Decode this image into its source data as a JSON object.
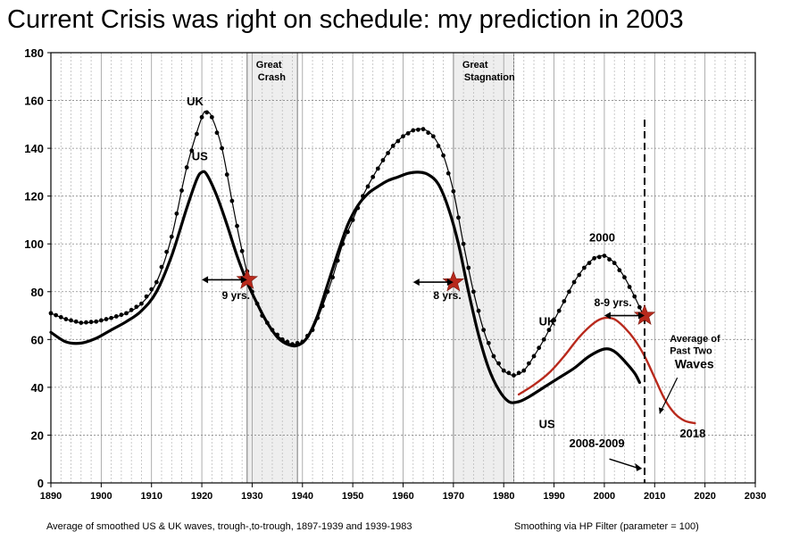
{
  "title": "Current Crisis was right on schedule: my prediction in 2003",
  "footer_left": "Average of smoothed US & UK waves, trough-,to-trough, 1897-1939 and 1939-1983",
  "footer_right": "Smoothing via HP Filter (parameter = 100)",
  "chart_data": {
    "type": "line",
    "title": "Current Crisis was right on schedule: my prediction in 2003",
    "xlabel": "",
    "ylabel": "",
    "xlim": [
      1890,
      2030
    ],
    "ylim": [
      0,
      180
    ],
    "x_ticks": [
      1890,
      1900,
      1910,
      1920,
      1930,
      1940,
      1950,
      1960,
      1970,
      1980,
      1990,
      2000,
      2010,
      2020,
      2030
    ],
    "y_ticks": [
      0,
      20,
      40,
      60,
      80,
      100,
      120,
      140,
      160,
      180
    ],
    "grid": true,
    "series": [
      {
        "name": "UK",
        "color": "#000000",
        "style": "dotted-markers",
        "points": [
          [
            1890,
            71
          ],
          [
            1893,
            68.5
          ],
          [
            1896,
            67
          ],
          [
            1899,
            67.5
          ],
          [
            1902,
            69
          ],
          [
            1905,
            71
          ],
          [
            1908,
            75
          ],
          [
            1911,
            84
          ],
          [
            1914,
            103
          ],
          [
            1917,
            132
          ],
          [
            1920,
            153
          ],
          [
            1921,
            155
          ],
          [
            1922,
            153
          ],
          [
            1924,
            140
          ],
          [
            1926,
            118
          ],
          [
            1928,
            97
          ],
          [
            1930,
            80
          ],
          [
            1932,
            70
          ],
          [
            1934,
            64
          ],
          [
            1936,
            60
          ],
          [
            1938,
            58
          ],
          [
            1940,
            59
          ],
          [
            1942,
            64
          ],
          [
            1944,
            74
          ],
          [
            1946,
            86
          ],
          [
            1948,
            100
          ],
          [
            1950,
            110
          ],
          [
            1952,
            120
          ],
          [
            1954,
            128
          ],
          [
            1956,
            135
          ],
          [
            1958,
            141
          ],
          [
            1960,
            145
          ],
          [
            1962,
            147.5
          ],
          [
            1964,
            148
          ],
          [
            1966,
            145
          ],
          [
            1968,
            137
          ],
          [
            1970,
            122
          ],
          [
            1972,
            100
          ],
          [
            1974,
            80
          ],
          [
            1976,
            64
          ],
          [
            1978,
            53
          ],
          [
            1980,
            47
          ],
          [
            1982,
            45
          ],
          [
            1984,
            47
          ],
          [
            1986,
            53
          ],
          [
            1988,
            60
          ],
          [
            1990,
            68
          ],
          [
            1992,
            76
          ],
          [
            1994,
            84
          ],
          [
            1996,
            90
          ],
          [
            1998,
            94
          ],
          [
            2000,
            95
          ],
          [
            2002,
            92
          ],
          [
            2004,
            86
          ],
          [
            2006,
            78
          ],
          [
            2008,
            69
          ]
        ]
      },
      {
        "name": "US",
        "color": "#000000",
        "style": "solid-thick",
        "points": [
          [
            1890,
            63
          ],
          [
            1893,
            59
          ],
          [
            1896,
            58.5
          ],
          [
            1899,
            60.5
          ],
          [
            1902,
            64
          ],
          [
            1905,
            67.5
          ],
          [
            1908,
            72
          ],
          [
            1911,
            80
          ],
          [
            1914,
            95
          ],
          [
            1917,
            115
          ],
          [
            1919,
            127
          ],
          [
            1920,
            130
          ],
          [
            1921,
            129
          ],
          [
            1923,
            120
          ],
          [
            1925,
            108
          ],
          [
            1927,
            95
          ],
          [
            1929,
            84
          ],
          [
            1931,
            75
          ],
          [
            1933,
            67
          ],
          [
            1935,
            61
          ],
          [
            1937,
            58
          ],
          [
            1939,
            57.5
          ],
          [
            1941,
            61
          ],
          [
            1943,
            70
          ],
          [
            1945,
            83
          ],
          [
            1947,
            96
          ],
          [
            1949,
            108
          ],
          [
            1951,
            116
          ],
          [
            1953,
            121
          ],
          [
            1955,
            124
          ],
          [
            1957,
            126.5
          ],
          [
            1959,
            128
          ],
          [
            1961,
            129.5
          ],
          [
            1963,
            130
          ],
          [
            1965,
            129
          ],
          [
            1967,
            125
          ],
          [
            1969,
            115
          ],
          [
            1971,
            100
          ],
          [
            1973,
            80
          ],
          [
            1975,
            62
          ],
          [
            1977,
            48
          ],
          [
            1979,
            39
          ],
          [
            1981,
            34
          ],
          [
            1983,
            34
          ],
          [
            1985,
            36
          ],
          [
            1988,
            40
          ],
          [
            1991,
            44
          ],
          [
            1994,
            48
          ],
          [
            1997,
            53
          ],
          [
            2000,
            56
          ],
          [
            2002,
            55
          ],
          [
            2004,
            51
          ],
          [
            2006,
            46
          ],
          [
            2007,
            42
          ]
        ]
      },
      {
        "name": "Average of Past Two Waves",
        "color": "#b8291c",
        "style": "solid",
        "points": [
          [
            1983,
            37
          ],
          [
            1986,
            41
          ],
          [
            1989,
            46
          ],
          [
            1992,
            53
          ],
          [
            1995,
            61
          ],
          [
            1998,
            67
          ],
          [
            2000,
            69
          ],
          [
            2002,
            68.5
          ],
          [
            2004,
            65
          ],
          [
            2006,
            60
          ],
          [
            2008,
            53
          ],
          [
            2010,
            44
          ],
          [
            2012,
            35
          ],
          [
            2014,
            29
          ],
          [
            2016,
            26
          ],
          [
            2018,
            25
          ]
        ]
      }
    ],
    "shaded_regions": [
      {
        "label": "Great Crash",
        "x_start": 1929,
        "x_end": 1939
      },
      {
        "label": "Great Stagnation",
        "x_start": 1970,
        "x_end": 1982
      }
    ],
    "markers": [
      {
        "type": "star",
        "color": "#b8291c",
        "x": 1929,
        "y": 85
      },
      {
        "type": "star",
        "color": "#b8291c",
        "x": 1970,
        "y": 84
      },
      {
        "type": "star",
        "color": "#b8291c",
        "x": 2008,
        "y": 70
      }
    ],
    "vertical_line": {
      "x": 2008,
      "style": "dashed",
      "y_from": 0,
      "y_to": 152
    },
    "annotations": [
      {
        "text": "UK",
        "x": 1917,
        "y": 158
      },
      {
        "text": "US",
        "x": 1918,
        "y": 135
      },
      {
        "text": "9 yrs.",
        "x": 1924,
        "y": 77,
        "arrow_from": 1920,
        "arrow_to": 1929,
        "arrow_y": 85
      },
      {
        "text": "8 yrs.",
        "x": 1966,
        "y": 77,
        "arrow_from": 1962,
        "arrow_to": 1970,
        "arrow_y": 84
      },
      {
        "text": "2000",
        "x": 1997,
        "y": 101
      },
      {
        "text": "8-9 yrs.",
        "x": 1998,
        "y": 74,
        "arrow_from": 2000,
        "arrow_to": 2008,
        "arrow_y": 70
      },
      {
        "text": "UK",
        "x": 1987,
        "y": 66
      },
      {
        "text": "US",
        "x": 1987,
        "y": 23
      },
      {
        "text": "2008-2009",
        "x": 1993,
        "y": 15
      },
      {
        "text": "Average of",
        "x": 2013,
        "y": 59
      },
      {
        "text": "Past Two",
        "x": 2013,
        "y": 54
      },
      {
        "text": "Waves",
        "x": 2014,
        "y": 48
      },
      {
        "text": "2018",
        "x": 2015,
        "y": 19
      }
    ]
  }
}
